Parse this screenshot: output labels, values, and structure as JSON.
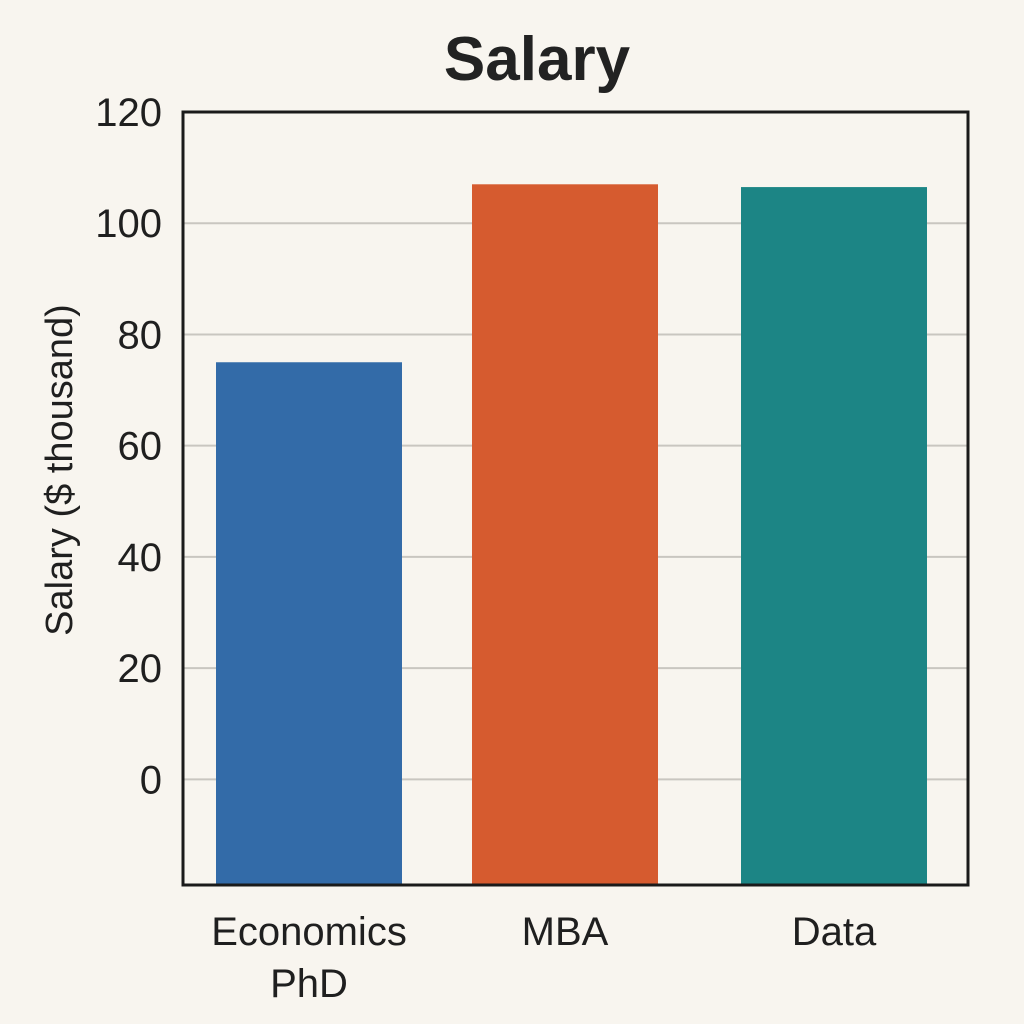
{
  "chart_data": {
    "type": "bar",
    "title": "Salary",
    "xlabel": "",
    "ylabel": "Salary ($ thousand)",
    "categories": [
      [
        "Economics",
        "PhD"
      ],
      [
        "MBA"
      ],
      [
        "Data"
      ]
    ],
    "values": [
      75,
      107,
      106.5
    ],
    "colors": [
      "#336ba8",
      "#d65b2f",
      "#1c8585"
    ],
    "ylim": [
      -19,
      120
    ],
    "yticks": [
      0,
      20,
      40,
      60,
      80,
      100,
      120
    ],
    "grid": true,
    "legend": "none"
  }
}
